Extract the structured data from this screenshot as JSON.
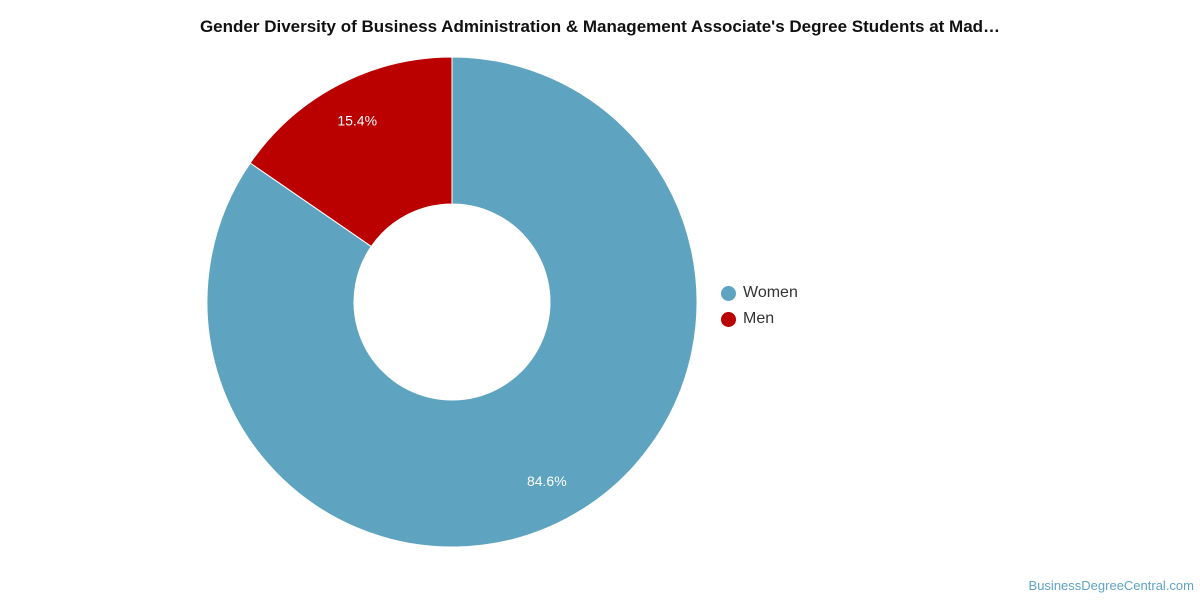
{
  "chart_data": {
    "type": "pie",
    "title": "Gender Diversity of Business Administration & Management Associate's Degree Students at Mad…",
    "donut": true,
    "slices": [
      {
        "label": "Women",
        "value": 84.6,
        "display": "84.6%",
        "color": "#5ea3c0"
      },
      {
        "label": "Men",
        "value": 15.4,
        "display": "15.4%",
        "color": "#bb0000"
      }
    ],
    "legend_position": "right"
  },
  "watermark": "BusinessDegreeCentral.com"
}
